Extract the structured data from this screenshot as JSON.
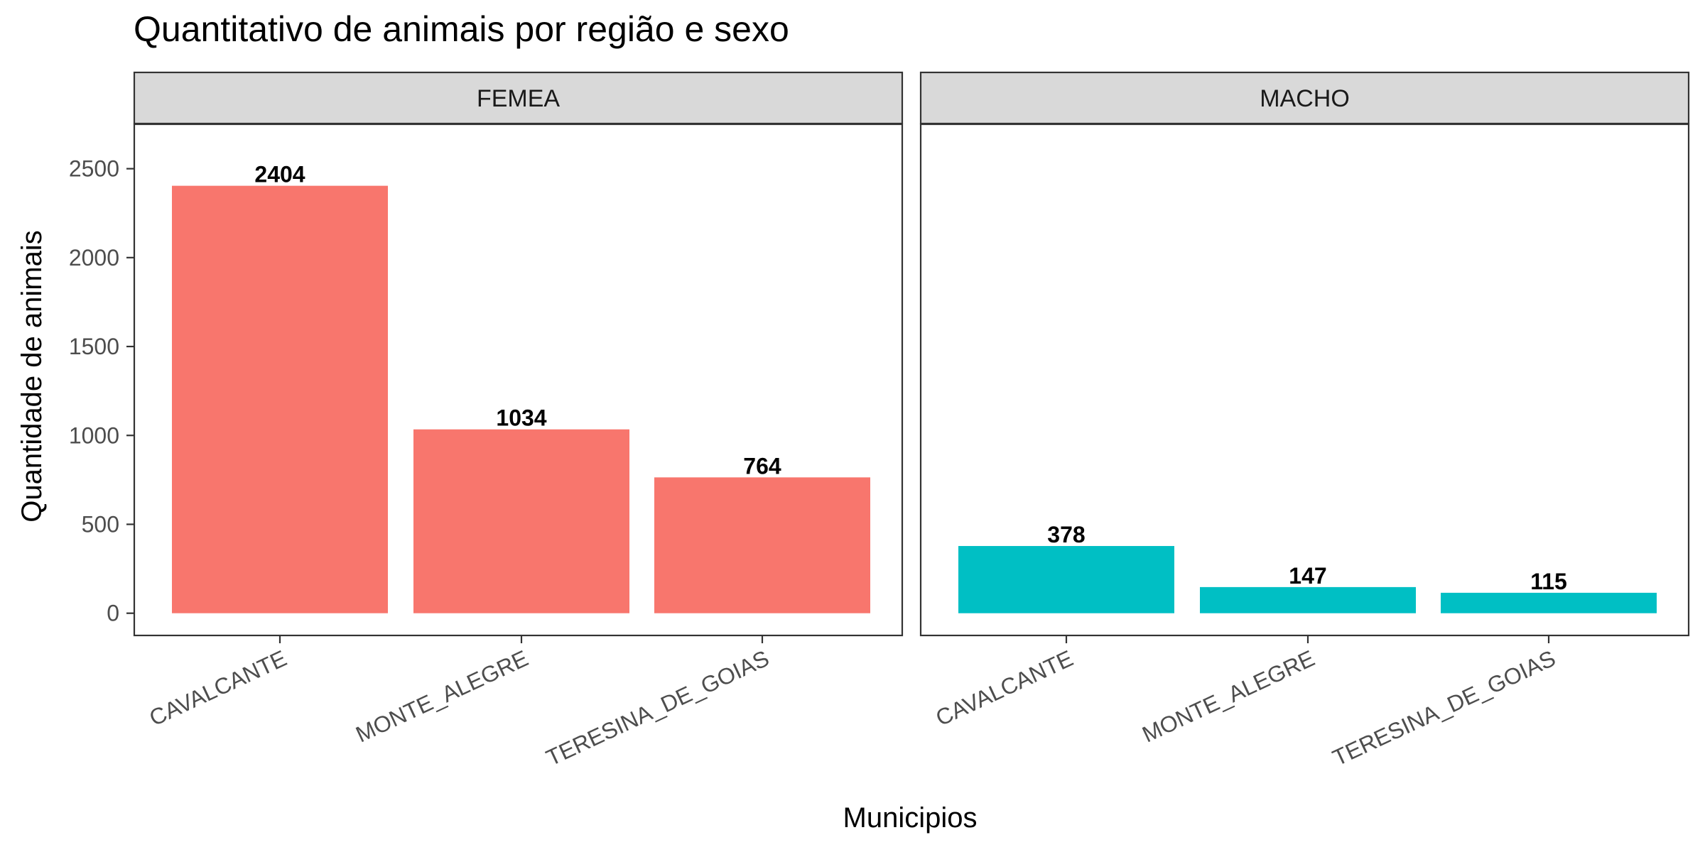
{
  "chart_data": {
    "type": "bar",
    "title": "Quantitativo de animais por região e sexo",
    "xlabel": "Municipios",
    "ylabel": "Quantidade de animais",
    "ylim": [
      -125,
      2750
    ],
    "yticks": [
      0,
      500,
      1000,
      1500,
      2000,
      2500
    ],
    "ytick_labels": [
      "0",
      "500",
      "1000",
      "1500",
      "2000",
      "2500"
    ],
    "grid": false,
    "legend": "none",
    "categories": [
      "CAVALCANTE",
      "MONTE_ALEGRE",
      "TERESINA_DE_GOIAS"
    ],
    "panels": [
      {
        "name": "FEMEA",
        "color": "#F8766D",
        "values": [
          2404,
          1034,
          764
        ],
        "labels": [
          "2404",
          "1034",
          "764"
        ]
      },
      {
        "name": "MACHO",
        "color": "#00BFC4",
        "values": [
          378,
          147,
          115
        ],
        "labels": [
          "378",
          "147",
          "115"
        ]
      }
    ]
  }
}
